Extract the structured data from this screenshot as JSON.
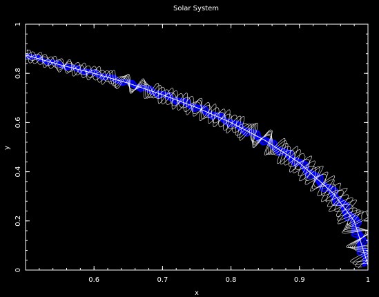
{
  "chart_data": {
    "type": "line",
    "title": "Solar System",
    "xlabel": "x",
    "ylabel": "y",
    "xlim": [
      0.5,
      1.0
    ],
    "ylim": [
      0,
      1.0
    ],
    "x_ticks": [
      0.6,
      0.7,
      0.8,
      0.9,
      1.0
    ],
    "x_tick_labels": [
      "0.6",
      "0.7",
      "0.8",
      "0.9",
      "1"
    ],
    "y_ticks": [
      0,
      0.2,
      0.4,
      0.6,
      0.8,
      1.0
    ],
    "y_tick_labels": [
      "0",
      "0.2",
      "0.4",
      "0.6",
      "0.8",
      "1"
    ],
    "grid": false,
    "background_color": "#000000",
    "frame_color": "#ffffff",
    "series": [
      {
        "color": "#0000ff",
        "points": [
          [
            0.5,
            0.875
          ],
          [
            0.55,
            0.835
          ],
          [
            0.6,
            0.8
          ],
          [
            0.65,
            0.76
          ],
          [
            0.7,
            0.713
          ],
          [
            0.75,
            0.661
          ],
          [
            0.8,
            0.6
          ],
          [
            0.85,
            0.527
          ],
          [
            0.9,
            0.436
          ],
          [
            0.95,
            0.31
          ],
          [
            0.98,
            0.199
          ],
          [
            1.0,
            0.02
          ]
        ]
      }
    ]
  }
}
